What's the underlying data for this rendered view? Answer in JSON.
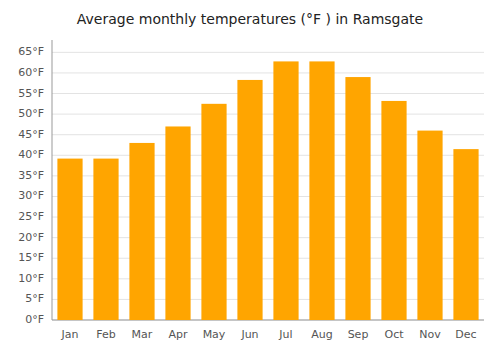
{
  "chart_data": {
    "type": "bar",
    "title": "Average monthly temperatures (°F ) in Ramsgate",
    "categories": [
      "Jan",
      "Feb",
      "Mar",
      "Apr",
      "May",
      "Jun",
      "Jul",
      "Aug",
      "Sep",
      "Oct",
      "Nov",
      "Dec"
    ],
    "values": [
      39.2,
      39.2,
      43.0,
      47.0,
      52.5,
      58.3,
      62.8,
      62.8,
      59.0,
      53.2,
      46.0,
      41.5
    ],
    "color": "#FFA500",
    "ylim": [
      0,
      68
    ],
    "yticks": [
      {
        "value": 0,
        "label": "0°F"
      },
      {
        "value": 5,
        "label": "5°F"
      },
      {
        "value": 10,
        "label": "10°F"
      },
      {
        "value": 15,
        "label": "15°F"
      },
      {
        "value": 20,
        "label": "20°F"
      },
      {
        "value": 25,
        "label": "25°F"
      },
      {
        "value": 30,
        "label": "30°F"
      },
      {
        "value": 35,
        "label": "35°F"
      },
      {
        "value": 40,
        "label": "40°F"
      },
      {
        "value": 45,
        "label": "45°F"
      },
      {
        "value": 50,
        "label": "50°F"
      },
      {
        "value": 55,
        "label": "55°F"
      },
      {
        "value": 60,
        "label": "60°F"
      },
      {
        "value": 65,
        "label": "65°F"
      }
    ],
    "grid": true
  }
}
